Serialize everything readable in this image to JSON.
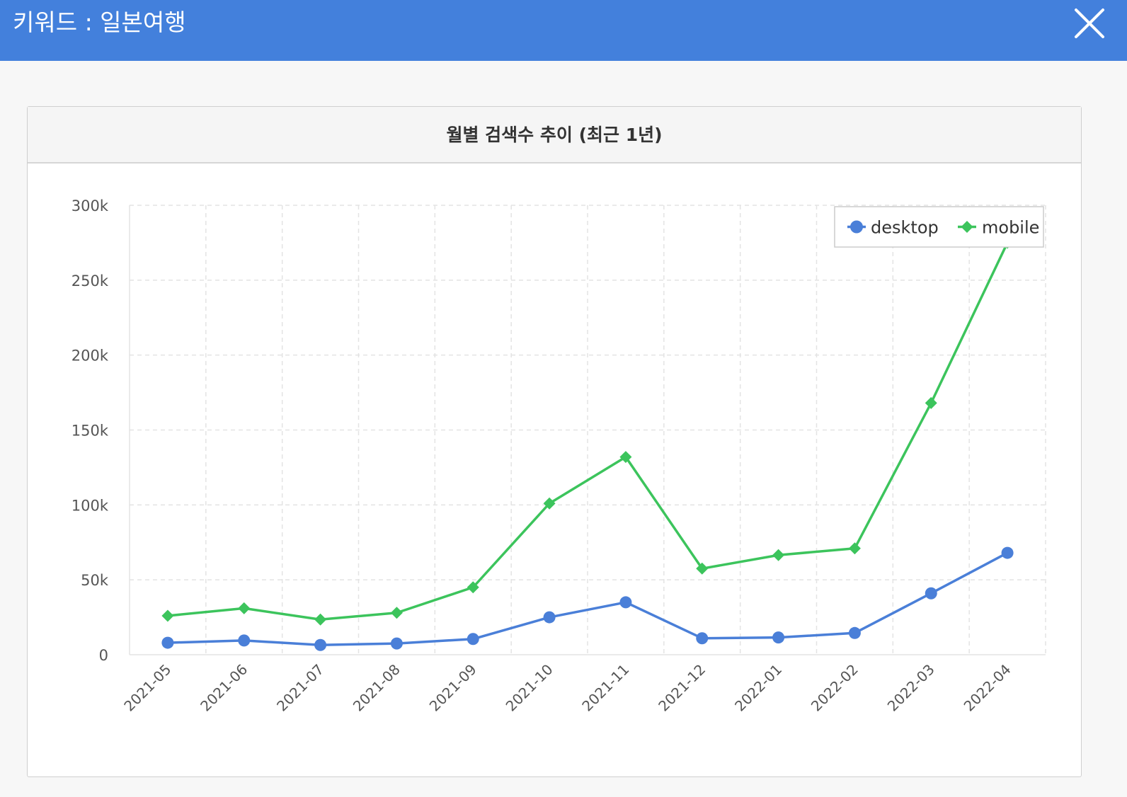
{
  "header": {
    "title": "키워드 : 일본여행",
    "background_color": "#4380dc",
    "close_icon": "close-icon"
  },
  "card": {
    "title": "월별 검색수 추이 (최근 1년)"
  },
  "colors": {
    "desktop": "#4a7fd8",
    "mobile": "#3cc45c",
    "grid": "#e3e3e3"
  },
  "chart_data": {
    "type": "line",
    "title": "월별 검색수 추이 (최근 1년)",
    "categories": [
      "2021-05",
      "2021-06",
      "2021-07",
      "2021-08",
      "2021-09",
      "2021-10",
      "2021-11",
      "2021-12",
      "2022-01",
      "2022-02",
      "2022-03",
      "2022-04"
    ],
    "series": [
      {
        "name": "desktop",
        "marker": "circle",
        "values": [
          8000,
          9500,
          6500,
          7500,
          10500,
          25000,
          35000,
          11000,
          11500,
          14500,
          41000,
          68000
        ]
      },
      {
        "name": "mobile",
        "marker": "diamond",
        "values": [
          26000,
          31000,
          23500,
          28000,
          45000,
          101000,
          132000,
          57500,
          66500,
          71000,
          168000,
          275000
        ]
      }
    ],
    "y_ticks": [
      "0",
      "50k",
      "100k",
      "150k",
      "200k",
      "250k",
      "300k"
    ],
    "ylim": [
      0,
      300000
    ],
    "grid": true,
    "legend_position": "top-right",
    "xlabel": "",
    "ylabel": ""
  }
}
